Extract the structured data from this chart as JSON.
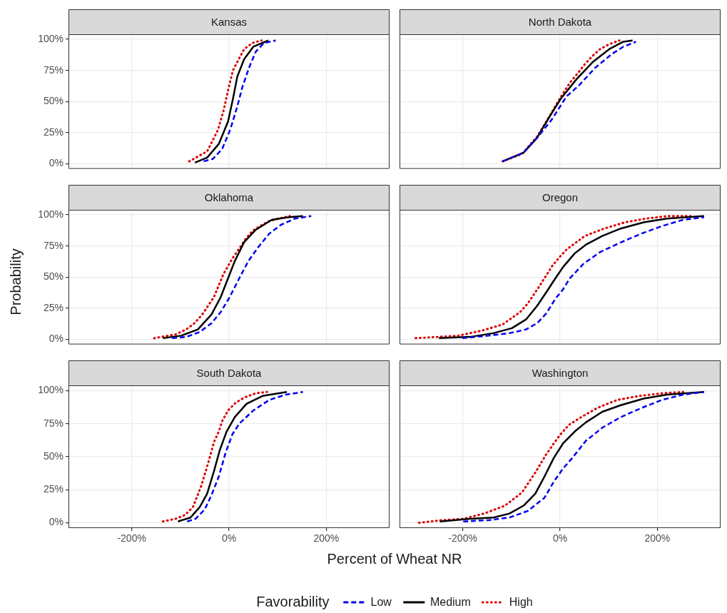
{
  "chart_data": [
    {
      "type": "line",
      "title": "Kansas",
      "ylabel": "Probability",
      "legend": "bottom",
      "legend_title": "Favorability",
      "xlim": [
        -330,
        330
      ],
      "ylim": [
        -4,
        104
      ],
      "xticks": [
        {
          "value": -200,
          "label": null
        },
        {
          "value": 0,
          "label": null
        },
        {
          "value": 200,
          "label": null
        }
      ],
      "yticks": [
        {
          "value": 0,
          "label": "0%"
        },
        {
          "value": 25,
          "label": "25%"
        },
        {
          "value": 50,
          "label": "50%"
        },
        {
          "value": 75,
          "label": "75%"
        },
        {
          "value": 100,
          "label": "100%"
        }
      ],
      "grid": true,
      "tick_labels": "y",
      "series": [
        {
          "name": "Low",
          "color": "#0000ee",
          "line_style": "dashed",
          "x": [
            -52,
            -33,
            -14,
            3,
            17,
            27,
            41,
            55,
            72,
            96
          ],
          "values": [
            2,
            4,
            12,
            28,
            46,
            61,
            77,
            90,
            97,
            99
          ]
        },
        {
          "name": "Medium",
          "color": "#000000",
          "line_style": "solid",
          "x": [
            -70,
            -45,
            -21,
            -2,
            8,
            17,
            31,
            50,
            81
          ],
          "values": [
            1,
            5,
            16,
            34,
            52,
            70,
            84,
            94,
            99
          ]
        },
        {
          "name": "High",
          "color": "#dd0000",
          "line_style": "dotted",
          "x": [
            -82,
            -45,
            -23,
            -11,
            -2,
            8,
            20,
            31,
            48,
            67
          ],
          "values": [
            2,
            10,
            27,
            43,
            59,
            75,
            84,
            92,
            97,
            99
          ]
        }
      ]
    },
    {
      "type": "line",
      "title": "North Dakota",
      "xlim": [
        -330,
        330
      ],
      "ylim": [
        -4,
        104
      ],
      "xticks": [
        {
          "value": -200,
          "label": null
        },
        {
          "value": 0,
          "label": null
        },
        {
          "value": 200,
          "label": null
        }
      ],
      "yticks": [
        {
          "value": 0,
          "label": null
        },
        {
          "value": 25,
          "label": null
        },
        {
          "value": 50,
          "label": null
        },
        {
          "value": 75,
          "label": null
        },
        {
          "value": 100,
          "label": null
        }
      ],
      "grid": true,
      "tick_labels": false,
      "series": [
        {
          "color": "#0000ee",
          "line_style": "dashed",
          "x": [
            -118,
            -75,
            -47,
            -18,
            13,
            39,
            72,
            106,
            130,
            156
          ],
          "values": [
            2,
            9,
            21,
            35,
            54,
            63,
            77,
            88,
            94,
            98
          ]
        },
        {
          "color": "#000000",
          "line_style": "solid",
          "x": [
            -118,
            -75,
            -47,
            -23,
            1,
            34,
            68,
            101,
            130,
            149
          ],
          "values": [
            2,
            9,
            21,
            37,
            52,
            68,
            82,
            92,
            98,
            99
          ]
        },
        {
          "color": "#dd0000",
          "line_style": "dotted",
          "x": [
            -118,
            -78,
            -47,
            -25,
            -13,
            -1,
            10,
            22,
            37,
            51,
            65,
            82,
            101,
            122
          ],
          "values": [
            2,
            8,
            22,
            36,
            44,
            52,
            59,
            66,
            73,
            80,
            86,
            92,
            96,
            99
          ]
        }
      ]
    },
    {
      "type": "line",
      "title": "Oklahoma",
      "xlim": [
        -330,
        330
      ],
      "ylim": [
        -4,
        104
      ],
      "xticks": [
        {
          "value": -200,
          "label": null
        },
        {
          "value": 0,
          "label": null
        },
        {
          "value": 200,
          "label": null
        }
      ],
      "yticks": [
        {
          "value": 0,
          "label": "0%"
        },
        {
          "value": 25,
          "label": "25%"
        },
        {
          "value": 50,
          "label": "50%"
        },
        {
          "value": 75,
          "label": "75%"
        },
        {
          "value": 100,
          "label": "100%"
        }
      ],
      "grid": true,
      "tick_labels": "y",
      "series": [
        {
          "color": "#0000ee",
          "line_style": "dashed",
          "x": [
            -117,
            -88,
            -60,
            -36,
            -17,
            0,
            21,
            40,
            60,
            83,
            107,
            136,
            169
          ],
          "values": [
            1,
            2,
            6,
            13,
            22,
            33,
            49,
            63,
            74,
            85,
            92,
            97,
            99
          ]
        },
        {
          "color": "#000000",
          "line_style": "solid",
          "x": [
            -136,
            -98,
            -64,
            -36,
            -17,
            -2,
            12,
            31,
            55,
            88,
            121,
            152
          ],
          "values": [
            1,
            3,
            8,
            20,
            34,
            49,
            63,
            78,
            88,
            96,
            98,
            99
          ]
        },
        {
          "color": "#dd0000",
          "line_style": "dotted",
          "x": [
            -154,
            -110,
            -88,
            -71,
            -55,
            -31,
            -12,
            7,
            21,
            33,
            48,
            64,
            83,
            102,
            125
          ],
          "values": [
            1,
            4,
            8,
            13,
            20,
            34,
            52,
            65,
            73,
            80,
            87,
            91,
            95,
            97,
            99
          ]
        }
      ]
    },
    {
      "type": "line",
      "title": "Oregon",
      "xlim": [
        -330,
        330
      ],
      "ylim": [
        -4,
        104
      ],
      "xticks": [
        {
          "value": -200,
          "label": null
        },
        {
          "value": 0,
          "label": null
        },
        {
          "value": 200,
          "label": null
        }
      ],
      "yticks": [
        {
          "value": 0,
          "label": null
        },
        {
          "value": 25,
          "label": null
        },
        {
          "value": 50,
          "label": null
        },
        {
          "value": 75,
          "label": null
        },
        {
          "value": 100,
          "label": null
        }
      ],
      "grid": true,
      "tick_labels": false,
      "series": [
        {
          "color": "#0000ee",
          "line_style": "dashed",
          "x": [
            -201,
            -147,
            -104,
            -70,
            -47,
            -28,
            -9,
            6,
            20,
            49,
            82,
            120,
            168,
            210,
            253,
            296
          ],
          "values": [
            1,
            3,
            5,
            8,
            13,
            21,
            33,
            40,
            49,
            61,
            70,
            77,
            85,
            91,
            96,
            98
          ]
        },
        {
          "color": "#000000",
          "line_style": "solid",
          "x": [
            -249,
            -185,
            -137,
            -99,
            -70,
            -47,
            -28,
            -13,
            6,
            30,
            53,
            87,
            125,
            172,
            220,
            296
          ],
          "values": [
            1,
            2,
            5,
            9,
            16,
            27,
            38,
            47,
            58,
            69,
            76,
            83,
            89,
            94,
            97,
            99
          ]
        },
        {
          "color": "#dd0000",
          "line_style": "dotted",
          "x": [
            -297,
            -251,
            -209,
            -161,
            -118,
            -82,
            -66,
            -42,
            -16,
            -1,
            13,
            51,
            91,
            134,
            177,
            222,
            268
          ],
          "values": [
            1,
            2,
            3,
            7,
            12,
            22,
            29,
            43,
            59,
            66,
            72,
            83,
            89,
            94,
            97,
            99,
            99
          ]
        }
      ]
    },
    {
      "type": "line",
      "title": "South Dakota",
      "xlabel": "Percent of Wheat NR",
      "xlim": [
        -330,
        330
      ],
      "ylim": [
        -4,
        104
      ],
      "xticks": [
        {
          "value": -200,
          "label": "-200%"
        },
        {
          "value": 0,
          "label": "0%"
        },
        {
          "value": 200,
          "label": "200%"
        }
      ],
      "yticks": [
        {
          "value": 0,
          "label": "0%"
        },
        {
          "value": 25,
          "label": "25%"
        },
        {
          "value": 50,
          "label": "50%"
        },
        {
          "value": 75,
          "label": "75%"
        },
        {
          "value": 100,
          "label": "100%"
        }
      ],
      "grid": true,
      "series": [
        {
          "color": "#0000ee",
          "line_style": "dashed",
          "x": [
            -86,
            -69,
            -50,
            -36,
            -21,
            -7,
            7,
            21,
            50,
            83,
            117,
            152
          ],
          "values": [
            1,
            3,
            10,
            21,
            35,
            53,
            67,
            75,
            85,
            93,
            97,
            99
          ]
        },
        {
          "color": "#000000",
          "line_style": "solid",
          "x": [
            -105,
            -79,
            -60,
            -45,
            -31,
            -19,
            -5,
            12,
            36,
            69,
            119
          ],
          "values": [
            1,
            4,
            12,
            22,
            39,
            55,
            69,
            80,
            90,
            96,
            99
          ]
        },
        {
          "color": "#dd0000",
          "line_style": "dotted",
          "x": [
            -136,
            -110,
            -90,
            -74,
            -57,
            -43,
            -31,
            -21,
            -14,
            -2,
            14,
            33,
            55,
            78
          ],
          "values": [
            1,
            3,
            6,
            12,
            28,
            45,
            61,
            69,
            77,
            85,
            91,
            95,
            98,
            99
          ]
        }
      ]
    },
    {
      "type": "line",
      "title": "Washington",
      "xlim": [
        -330,
        330
      ],
      "ylim": [
        -4,
        104
      ],
      "xticks": [
        {
          "value": -200,
          "label": "-200%"
        },
        {
          "value": 0,
          "label": "0%"
        },
        {
          "value": 200,
          "label": "200%"
        }
      ],
      "yticks": [
        {
          "value": 0,
          "label": null
        },
        {
          "value": 25,
          "label": null
        },
        {
          "value": 50,
          "label": null
        },
        {
          "value": 75,
          "label": null
        },
        {
          "value": 100,
          "label": null
        }
      ],
      "grid": true,
      "tick_labels": "x",
      "series": [
        {
          "color": "#0000ee",
          "line_style": "dashed",
          "x": [
            -199,
            -147,
            -104,
            -66,
            -32,
            -13,
            6,
            25,
            53,
            87,
            125,
            168,
            210,
            253,
            296
          ],
          "values": [
            1,
            2,
            4,
            9,
            19,
            31,
            41,
            49,
            62,
            72,
            80,
            87,
            93,
            97,
            99
          ]
        },
        {
          "color": "#000000",
          "line_style": "solid",
          "x": [
            -247,
            -185,
            -137,
            -104,
            -75,
            -51,
            -32,
            -13,
            6,
            30,
            53,
            87,
            125,
            172,
            220,
            296
          ],
          "values": [
            1,
            3,
            4,
            7,
            13,
            22,
            35,
            49,
            60,
            69,
            76,
            84,
            89,
            94,
            97,
            99
          ]
        },
        {
          "color": "#dd0000",
          "line_style": "dotted",
          "x": [
            -290,
            -242,
            -199,
            -156,
            -113,
            -78,
            -51,
            -28,
            -13,
            1,
            18,
            39,
            77,
            118,
            163,
            210,
            253
          ],
          "values": [
            0,
            2,
            3,
            7,
            13,
            23,
            38,
            52,
            60,
            67,
            74,
            79,
            87,
            93,
            96,
            98,
            99
          ]
        }
      ]
    }
  ]
}
